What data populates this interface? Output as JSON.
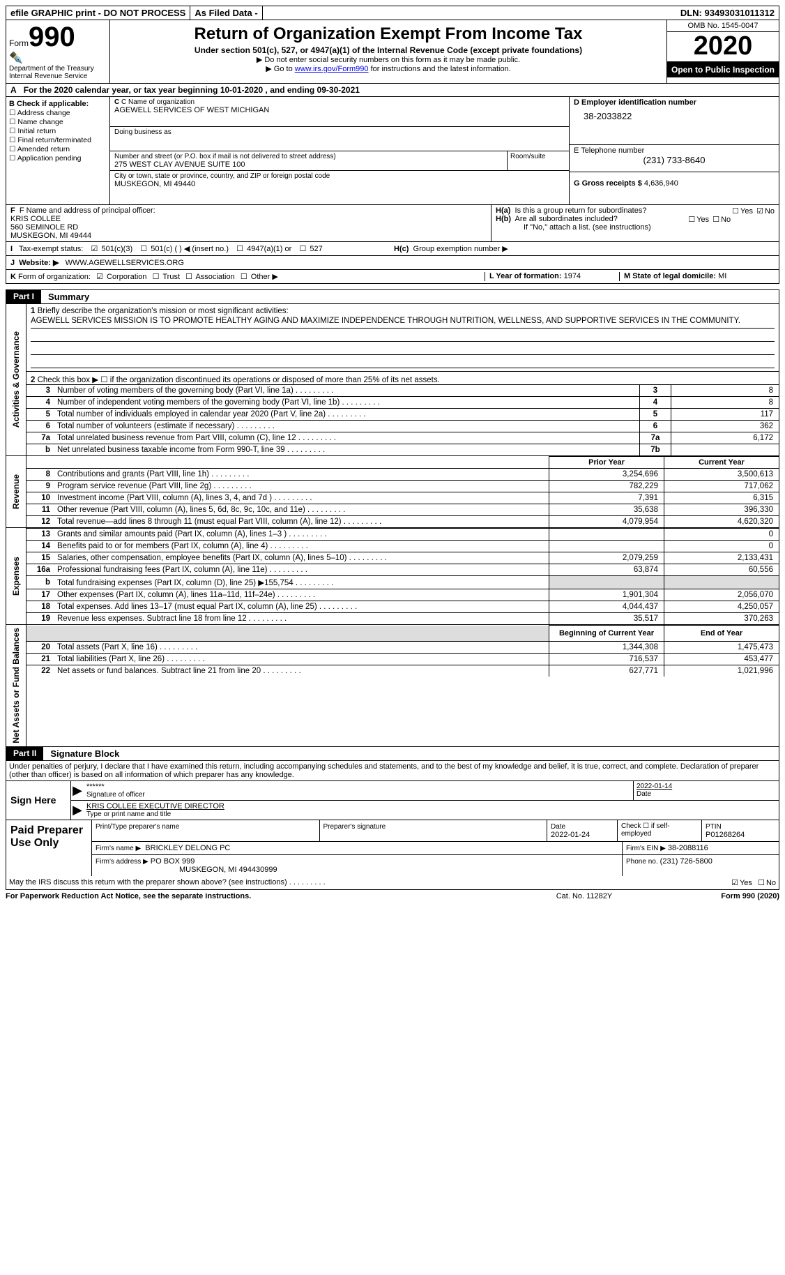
{
  "top_bar": {
    "efile": "efile GRAPHIC print - DO NOT PROCESS",
    "as_filed": "As Filed Data -",
    "dln_label": "DLN:",
    "dln": "93493031011312"
  },
  "header": {
    "form_word": "Form",
    "form_number": "990",
    "dept": "Department of the Treasury",
    "irs": "Internal Revenue Service",
    "title": "Return of Organization Exempt From Income Tax",
    "sub1": "Under section 501(c), 527, or 4947(a)(1) of the Internal Revenue Code (except private foundations)",
    "sub2": "▶ Do not enter social security numbers on this form as it may be made public.",
    "sub3_pre": "▶ Go to ",
    "sub3_link": "www.irs.gov/Form990",
    "sub3_post": " for instructions and the latest information.",
    "omb": "OMB No. 1545-0047",
    "year": "2020",
    "open_public": "Open to Public Inspection"
  },
  "row_a": {
    "label": "A",
    "text_pre": "For the 2020 calendar year, or tax year beginning ",
    "begin": "10-01-2020",
    "mid": "  , and ending ",
    "end": "09-30-2021"
  },
  "col_b": {
    "label": "B Check if applicable:",
    "items": [
      "Address change",
      "Name change",
      "Initial return",
      "Final return/terminated",
      "Amended return",
      "Application pending"
    ]
  },
  "col_c": {
    "name_lbl": "C Name of organization",
    "name": "AGEWELL SERVICES OF WEST MICHIGAN",
    "dba_lbl": "Doing business as",
    "dba": "",
    "street_lbl": "Number and street (or P.O. box if mail is not delivered to street address)",
    "street": "275 WEST CLAY AVENUE SUITE 100",
    "room_lbl": "Room/suite",
    "room": "",
    "city_lbl": "City or town, state or province, country, and ZIP or foreign postal code",
    "city": "MUSKEGON, MI  49440"
  },
  "col_d": {
    "ein_lbl": "D Employer identification number",
    "ein": "38-2033822",
    "tel_lbl": "E Telephone number",
    "tel": "(231) 733-8640",
    "gross_lbl": "G Gross receipts $",
    "gross": "4,636,940"
  },
  "row_f": {
    "lbl": "F  Name and address of principal officer:",
    "name": "KRIS COLLEE",
    "street": "560 SEMINOLE RD",
    "city": "MUSKEGON, MI  49444"
  },
  "row_h": {
    "ha_lbl": "H(a)",
    "ha_txt": "Is this a group return for subordinates?",
    "hb_lbl": "H(b)",
    "hb_txt": "Are all subordinates included?",
    "hb_note": "If \"No,\" attach a list. (see instructions)",
    "hc_lbl": "H(c)",
    "hc_txt": "Group exemption number ▶"
  },
  "row_i": {
    "lbl": "I",
    "txt": "Tax-exempt status:",
    "opts": [
      "501(c)(3)",
      "501(c) (   ) ◀ (insert no.)",
      "4947(a)(1) or",
      "527"
    ]
  },
  "row_j": {
    "lbl": "J",
    "txt": "Website: ▶",
    "val": "WWW.AGEWELLSERVICES.ORG"
  },
  "row_k": {
    "lbl": "K",
    "txt": "Form of organization:",
    "opts": [
      "Corporation",
      "Trust",
      "Association",
      "Other ▶"
    ],
    "l_lbl": "L Year of formation:",
    "l_val": "1974",
    "m_lbl": "M State of legal domicile:",
    "m_val": "MI"
  },
  "part1": {
    "part_lbl": "Part I",
    "title": "Summary",
    "q1_lbl": "1",
    "q1_txt": "Briefly describe the organization's mission or most significant activities:",
    "q1_val": "AGEWELL SERVICES MISSION IS TO PROMOTE HEALTHY AGING AND MAXIMIZE INDEPENDENCE THROUGH NUTRITION, WELLNESS, AND SUPPORTIVE SERVICES IN THE COMMUNITY.",
    "q2_txt": "Check this box ▶ ☐ if the organization discontinued its operations or disposed of more than 25% of its net assets.",
    "vtab1": "Activities & Governance",
    "vtab2": "Revenue",
    "vtab3": "Expenses",
    "vtab4": "Net Assets or Fund Balances",
    "gov_rows": [
      {
        "n": "3",
        "t": "Number of voting members of the governing body (Part VI, line 1a)",
        "b": "3",
        "v": "8"
      },
      {
        "n": "4",
        "t": "Number of independent voting members of the governing body (Part VI, line 1b)",
        "b": "4",
        "v": "8"
      },
      {
        "n": "5",
        "t": "Total number of individuals employed in calendar year 2020 (Part V, line 2a)",
        "b": "5",
        "v": "117"
      },
      {
        "n": "6",
        "t": "Total number of volunteers (estimate if necessary)",
        "b": "6",
        "v": "362"
      },
      {
        "n": "7a",
        "t": "Total unrelated business revenue from Part VIII, column (C), line 12",
        "b": "7a",
        "v": "6,172"
      },
      {
        "n": "b",
        "t": "Net unrelated business taxable income from Form 990-T, line 39",
        "b": "7b",
        "v": ""
      }
    ],
    "py_hdr": "Prior Year",
    "cy_hdr": "Current Year",
    "rev_rows": [
      {
        "n": "8",
        "t": "Contributions and grants (Part VIII, line 1h)",
        "p": "3,254,696",
        "c": "3,500,613"
      },
      {
        "n": "9",
        "t": "Program service revenue (Part VIII, line 2g)",
        "p": "782,229",
        "c": "717,062"
      },
      {
        "n": "10",
        "t": "Investment income (Part VIII, column (A), lines 3, 4, and 7d )",
        "p": "7,391",
        "c": "6,315"
      },
      {
        "n": "11",
        "t": "Other revenue (Part VIII, column (A), lines 5, 6d, 8c, 9c, 10c, and 11e)",
        "p": "35,638",
        "c": "396,330"
      },
      {
        "n": "12",
        "t": "Total revenue—add lines 8 through 11 (must equal Part VIII, column (A), line 12)",
        "p": "4,079,954",
        "c": "4,620,320"
      }
    ],
    "exp_rows": [
      {
        "n": "13",
        "t": "Grants and similar amounts paid (Part IX, column (A), lines 1–3 )",
        "p": "",
        "c": "0"
      },
      {
        "n": "14",
        "t": "Benefits paid to or for members (Part IX, column (A), line 4)",
        "p": "",
        "c": "0"
      },
      {
        "n": "15",
        "t": "Salaries, other compensation, employee benefits (Part IX, column (A), lines 5–10)",
        "p": "2,079,259",
        "c": "2,133,431"
      },
      {
        "n": "16a",
        "t": "Professional fundraising fees (Part IX, column (A), line 11e)",
        "p": "63,874",
        "c": "60,556"
      },
      {
        "n": "b",
        "t": "Total fundraising expenses (Part IX, column (D), line 25) ▶155,754",
        "p": "gray",
        "c": "gray"
      },
      {
        "n": "17",
        "t": "Other expenses (Part IX, column (A), lines 11a–11d, 11f–24e)",
        "p": "1,901,304",
        "c": "2,056,070"
      },
      {
        "n": "18",
        "t": "Total expenses. Add lines 13–17 (must equal Part IX, column (A), line 25)",
        "p": "4,044,437",
        "c": "4,250,057"
      },
      {
        "n": "19",
        "t": "Revenue less expenses. Subtract line 18 from line 12",
        "p": "35,517",
        "c": "370,263"
      }
    ],
    "by_hdr": "Beginning of Current Year",
    "ey_hdr": "End of Year",
    "net_rows": [
      {
        "n": "20",
        "t": "Total assets (Part X, line 16)",
        "p": "1,344,308",
        "c": "1,475,473"
      },
      {
        "n": "21",
        "t": "Total liabilities (Part X, line 26)",
        "p": "716,537",
        "c": "453,477"
      },
      {
        "n": "22",
        "t": "Net assets or fund balances. Subtract line 21 from line 20",
        "p": "627,771",
        "c": "1,021,996"
      }
    ]
  },
  "part2": {
    "part_lbl": "Part II",
    "title": "Signature Block",
    "disclaimer": "Under penalties of perjury, I declare that I have examined this return, including accompanying schedules and statements, and to the best of my knowledge and belief, it is true, correct, and complete. Declaration of preparer (other than officer) is based on all information of which preparer has any knowledge.",
    "sign_here": "Sign Here",
    "sig_stars": "******",
    "sig_lbl": "Signature of officer",
    "sig_date": "2022-01-14",
    "sig_date_lbl": "Date",
    "name_title": "KRIS COLLEE  EXECUTIVE DIRECTOR",
    "name_lbl": "Type or print name and title",
    "paid_lbl": "Paid Preparer Use Only",
    "prep_name_lbl": "Print/Type preparer's name",
    "prep_name": "",
    "prep_sig_lbl": "Preparer's signature",
    "prep_date_lbl": "Date",
    "prep_date": "2022-01-24",
    "check_self": "Check ☐ if self-employed",
    "ptin_lbl": "PTIN",
    "ptin": "P01268264",
    "firm_name_lbl": "Firm's name      ▶",
    "firm_name": "BRICKLEY DELONG PC",
    "firm_ein_lbl": "Firm's EIN ▶",
    "firm_ein": "38-2088116",
    "firm_addr_lbl": "Firm's address ▶",
    "firm_addr1": "PO BOX 999",
    "firm_addr2": "MUSKEGON, MI  494430999",
    "phone_lbl": "Phone no.",
    "phone": "(231) 726-5800",
    "discuss": "May the IRS discuss this return with the preparer shown above? (see instructions)",
    "yes": "Yes",
    "no": "No"
  },
  "footer": {
    "pra": "For Paperwork Reduction Act Notice, see the separate instructions.",
    "cat": "Cat. No. 11282Y",
    "form": "Form 990 (2020)"
  }
}
